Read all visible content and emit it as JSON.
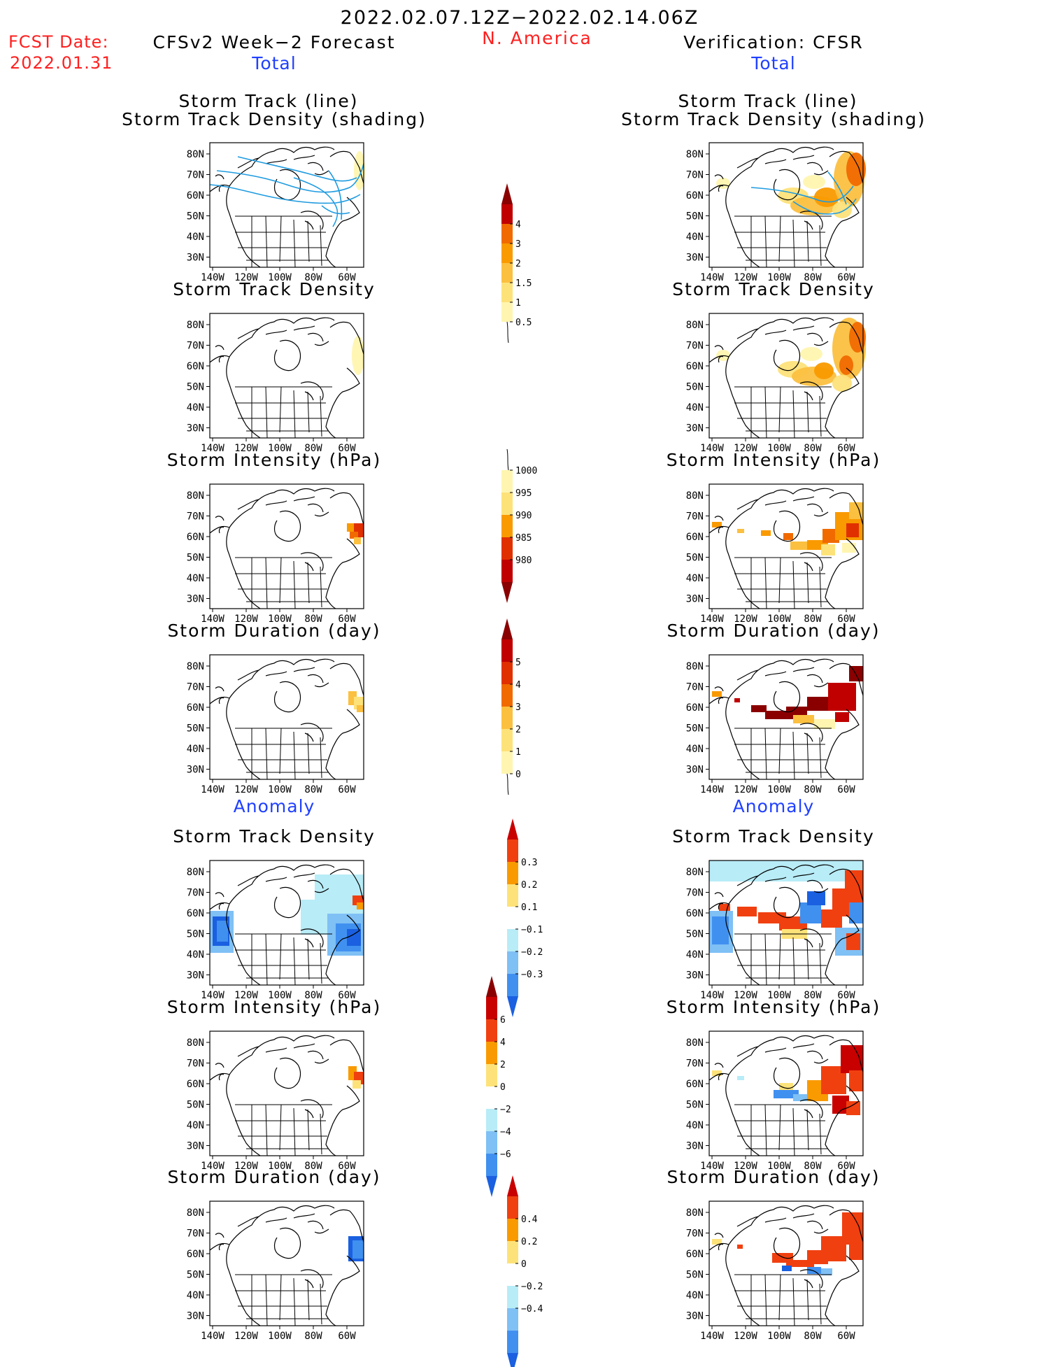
{
  "header": {
    "date_range": "2022.02.07.12Z−2022.02.14.06Z",
    "fcst_label": "FCST Date:",
    "fcst_date": "2022.01.31",
    "left_title": "CFSv2 Week−2 Forecast",
    "region": "N. America",
    "right_title": "Verification: CFSR"
  },
  "sections": {
    "total": "Total",
    "anomaly": "Anomaly"
  },
  "panel_titles": {
    "track_line": "Storm Track (line)",
    "track_density_shading": "Storm Track Density (shading)",
    "track_density": "Storm Track Density",
    "intensity": "Storm Intensity (hPa)",
    "duration": "Storm Duration (day)"
  },
  "axes": {
    "lat_labels": [
      "80N",
      "70N",
      "60N",
      "50N",
      "40N",
      "30N"
    ],
    "lon_labels": [
      "140W",
      "120W",
      "100W",
      "80W",
      "60W"
    ]
  },
  "colorbars": {
    "density_total": [
      "4",
      "3",
      "2",
      "1.5",
      "1",
      "0.5"
    ],
    "intensity_total": [
      "1000",
      "995",
      "990",
      "985",
      "980"
    ],
    "duration_total": [
      "5",
      "4",
      "3",
      "2",
      "1",
      "0"
    ],
    "density_anom": [
      "0.3",
      "0.2",
      "0.1",
      "−0.1",
      "−0.2",
      "−0.3"
    ],
    "intensity_anom": [
      "6",
      "4",
      "2",
      "0",
      "−2",
      "−4",
      "−6"
    ],
    "duration_anom": [
      "0.4",
      "0.2",
      "0",
      "−0.2",
      "−0.4"
    ]
  },
  "colors": {
    "header_red": "#ff2020",
    "section_blue": "#2040ff",
    "track_line": "#1e9be0",
    "warm": [
      "#fff5b0",
      "#fde27a",
      "#fbc040",
      "#f99a00",
      "#f06a00",
      "#e03000",
      "#c00000",
      "#8a0000"
    ],
    "anom": [
      "#1a60e0",
      "#4090f0",
      "#7fc0f5",
      "#b8ecf7",
      "#ffffff",
      "#fde27a",
      "#f99a00",
      "#f04010",
      "#c80000"
    ]
  }
}
